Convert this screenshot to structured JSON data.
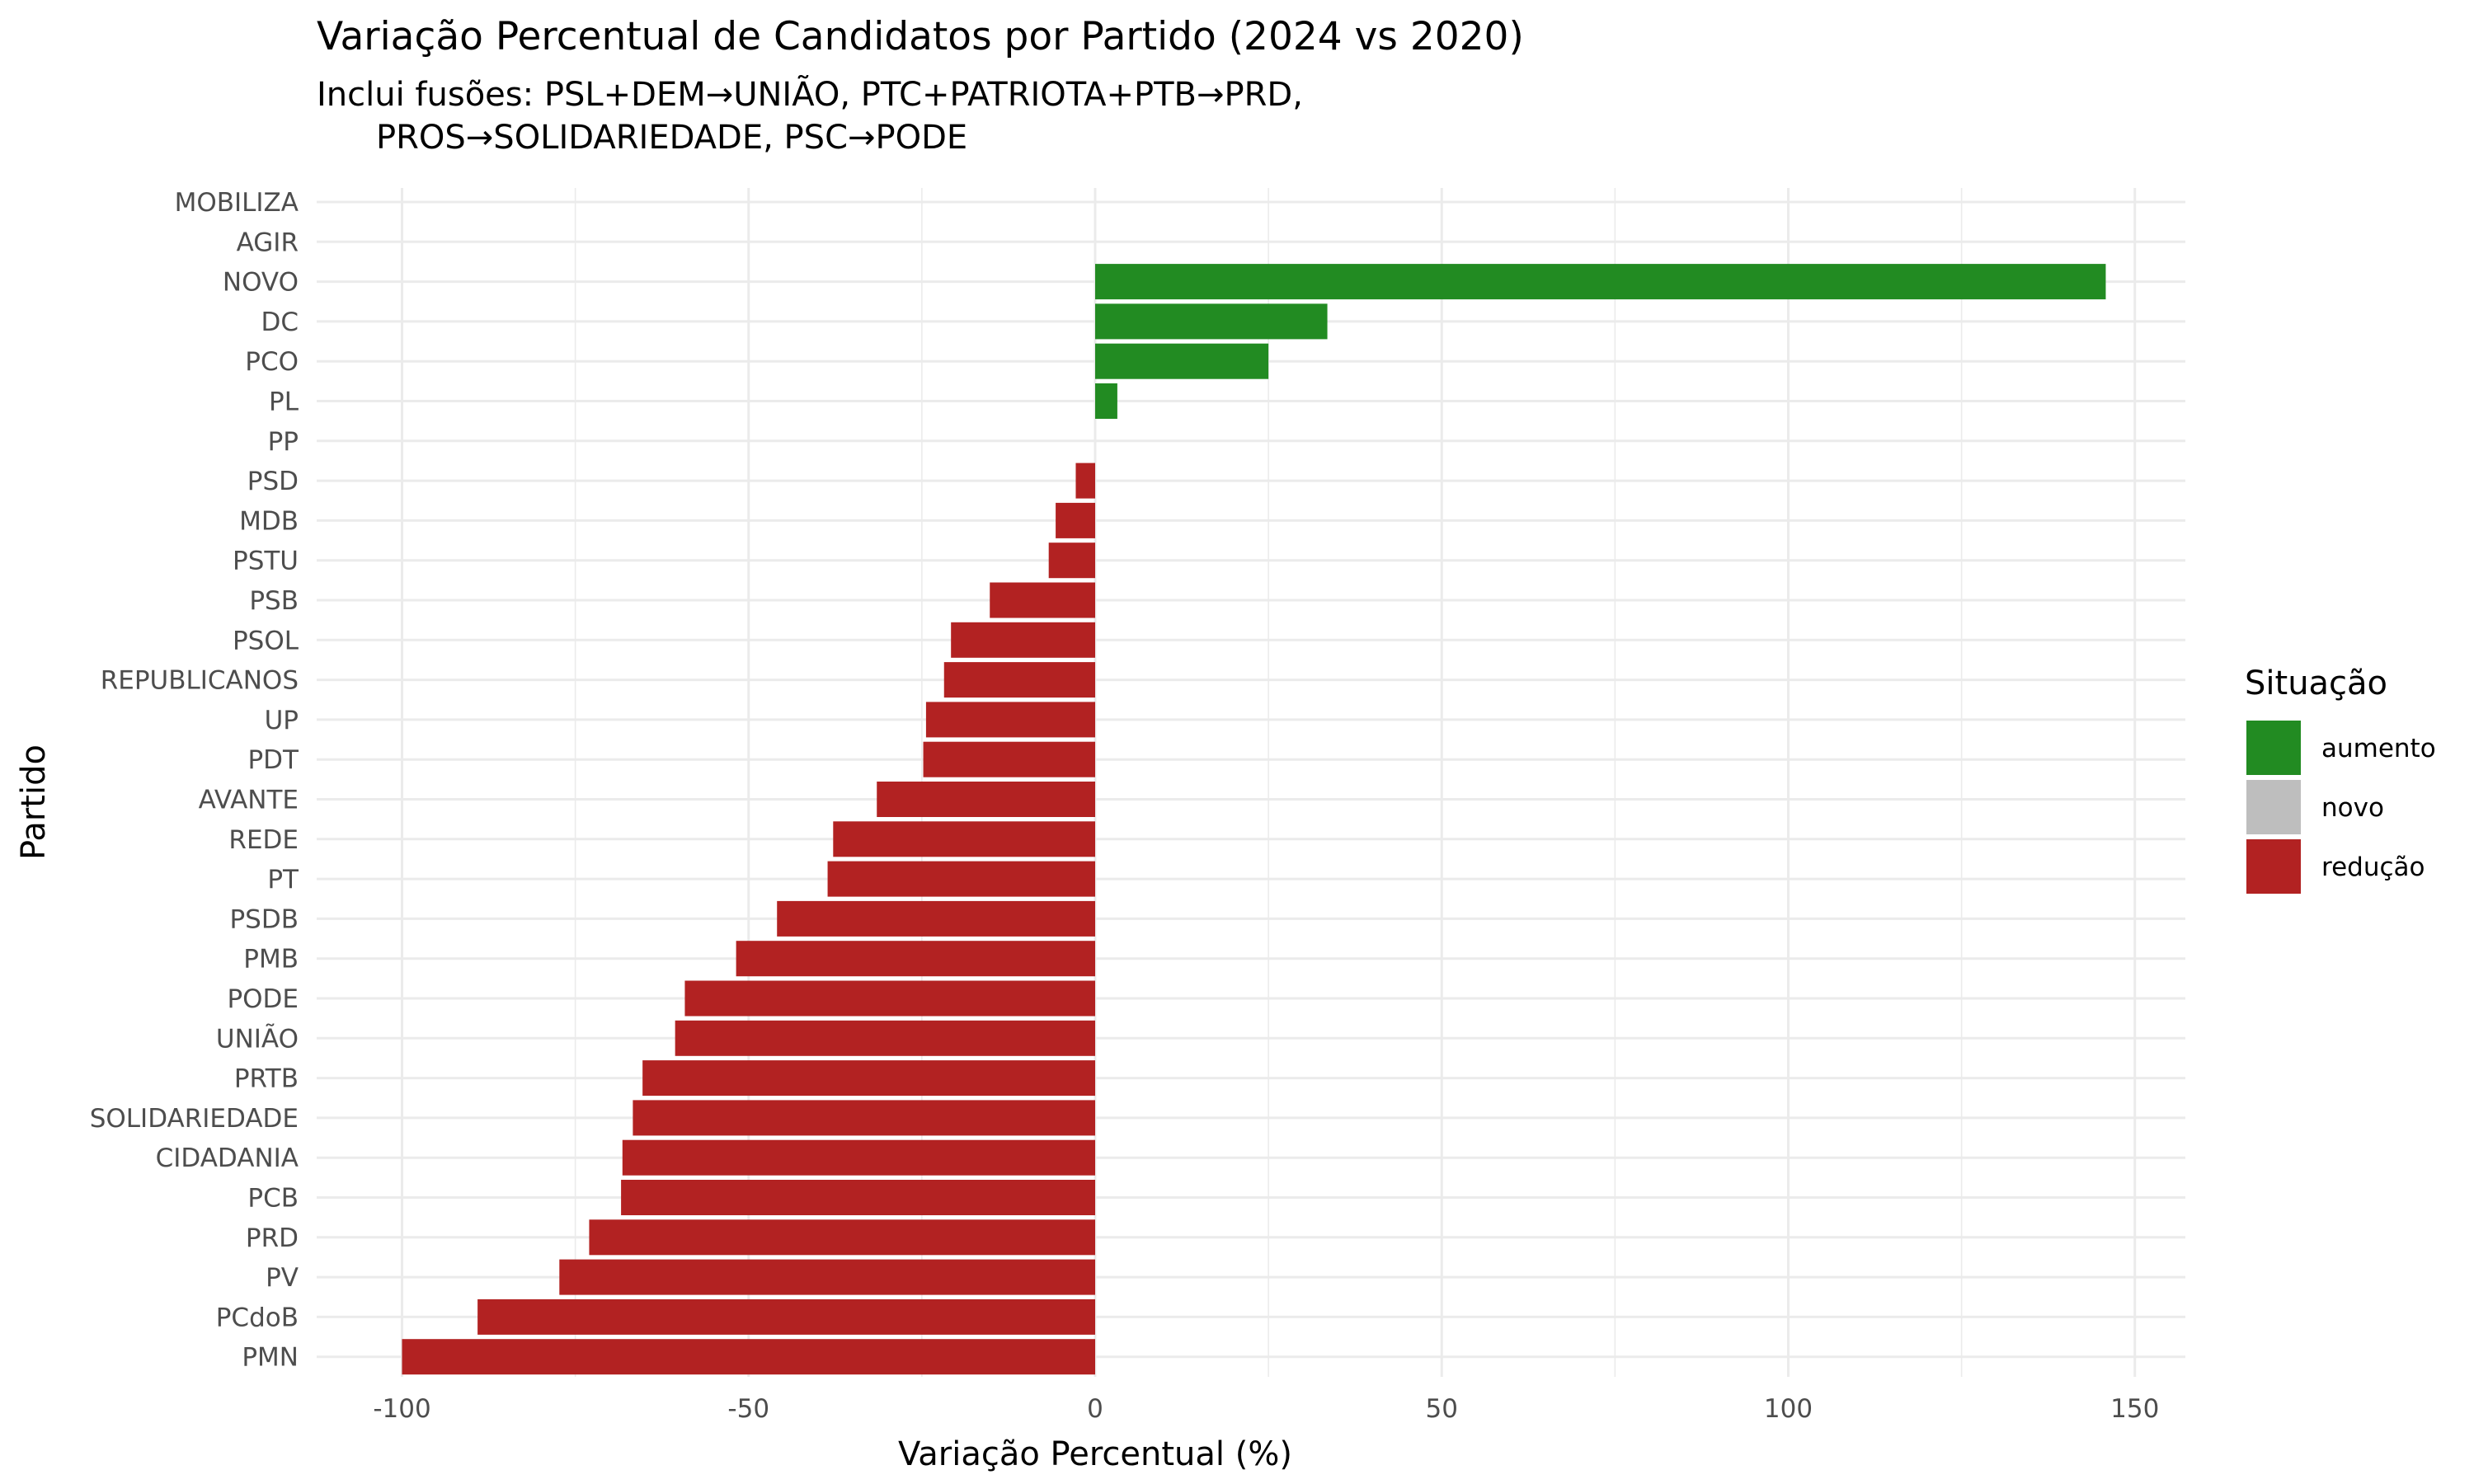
{
  "chart_data": {
    "type": "bar",
    "orientation": "horizontal",
    "title": "Variação Percentual de Candidatos por Partido (2024 vs 2020)",
    "subtitle_lines": [
      "Inclui fusões: PSL+DEM→UNIÃO, PTC+PATRIOTA+PTB→PRD,",
      "PROS→SOLIDARIEDADE, PSC→PODE"
    ],
    "xlabel": "Variação Percentual (%)",
    "ylabel": "Partido",
    "xlim": [
      -106,
      158
    ],
    "xticks": [
      -100,
      -50,
      0,
      50,
      100,
      150
    ],
    "xtick_labels": [
      "-100",
      "-50",
      "0",
      "50",
      "100",
      "150"
    ],
    "grid": true,
    "legend": {
      "title": "Situação",
      "placement": "right",
      "items": [
        {
          "label": "aumento",
          "color": "#228B22"
        },
        {
          "label": "novo",
          "color": "#BEBEBE"
        },
        {
          "label": "redução",
          "color": "#B22222"
        }
      ]
    },
    "categories": [
      "MOBILIZA",
      "AGIR",
      "NOVO",
      "DC",
      "PCO",
      "PL",
      "PP",
      "PSD",
      "MDB",
      "PSTU",
      "PSB",
      "PSOL",
      "REPUBLICANOS",
      "UP",
      "PDT",
      "AVANTE",
      "REDE",
      "PT",
      "PSDB",
      "PMB",
      "PODE",
      "UNIÃO",
      "PRTB",
      "SOLIDARIEDADE",
      "CIDADANIA",
      "PCB",
      "PRD",
      "PV",
      "PCdoB",
      "PMN"
    ],
    "values": [
      0,
      0,
      145.8,
      33.5,
      25.0,
      3.2,
      0.0,
      -2.8,
      -5.7,
      -6.7,
      -15.2,
      -20.8,
      -21.8,
      -24.4,
      -24.8,
      -31.5,
      -37.8,
      -38.6,
      -45.9,
      -51.8,
      -59.2,
      -60.6,
      -65.3,
      -66.7,
      -68.2,
      -68.4,
      -73.0,
      -77.3,
      -89.1,
      -100.0
    ],
    "status": [
      "novo",
      "novo",
      "aumento",
      "aumento",
      "aumento",
      "aumento",
      "redução",
      "redução",
      "redução",
      "redução",
      "redução",
      "redução",
      "redução",
      "redução",
      "redução",
      "redução",
      "redução",
      "redução",
      "redução",
      "redução",
      "redução",
      "redução",
      "redução",
      "redução",
      "redução",
      "redução",
      "redução",
      "redução",
      "redução",
      "redução"
    ]
  }
}
